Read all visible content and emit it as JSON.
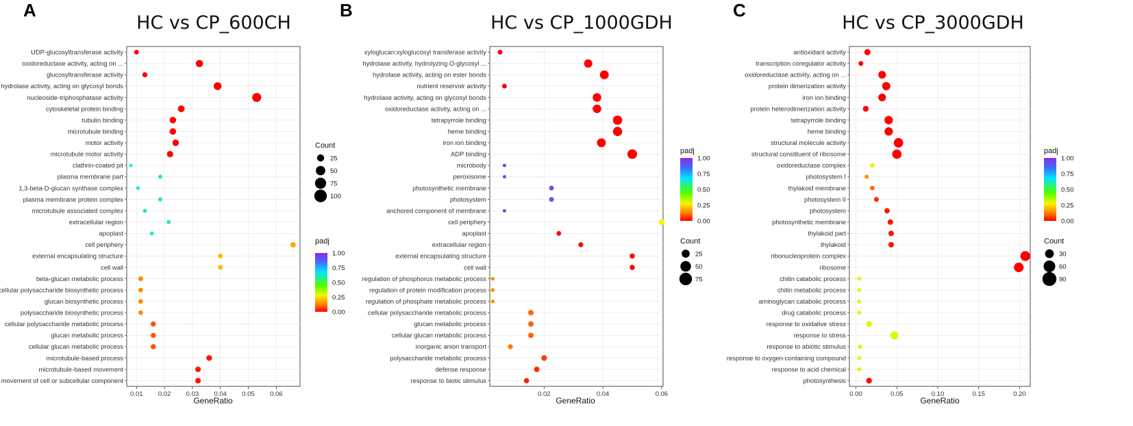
{
  "chart_data": [
    {
      "type": "scatter",
      "panel": "A",
      "title": "HC vs CP_600CH",
      "xlabel": "GeneRatio",
      "xlim": [
        0.0065,
        0.0685
      ],
      "xticks": [
        0.01,
        0.02,
        0.03,
        0.04,
        0.05,
        0.06
      ],
      "xtick_labels": [
        "0.01",
        "0.02",
        "0.03",
        "0.04",
        "0.05",
        "0.06"
      ],
      "size_legend": {
        "title": "Count",
        "values": [
          25,
          50,
          75,
          100
        ],
        "labels": [
          "25",
          "50",
          "75",
          "100"
        ],
        "max": 100
      },
      "color_legend": {
        "title": "padj",
        "labels": [
          "1.00",
          "0.75",
          "0.50",
          "0.25",
          "0.00"
        ]
      },
      "terms": [
        {
          "label": "UDP-glucosyltransferase activity",
          "x": 0.01,
          "count": 8,
          "padj": 0.0
        },
        {
          "label": "oxidoreductase activity, acting on ...",
          "x": 0.0325,
          "count": 26,
          "padj": 0.0
        },
        {
          "label": "glucosyltransferase activity",
          "x": 0.013,
          "count": 10,
          "padj": 0.0
        },
        {
          "label": "hydrolase activity, acting on glycosyl bonds",
          "x": 0.039,
          "count": 32,
          "padj": 0.0
        },
        {
          "label": "nucleoside-triphosphatase activity",
          "x": 0.053,
          "count": 45,
          "padj": 0.0
        },
        {
          "label": "cytoskeletal protein binding",
          "x": 0.026,
          "count": 22,
          "padj": 0.0
        },
        {
          "label": "tubulin binding",
          "x": 0.023,
          "count": 20,
          "padj": 0.0
        },
        {
          "label": "microtubule binding",
          "x": 0.023,
          "count": 20,
          "padj": 0.0
        },
        {
          "label": "motor activity",
          "x": 0.024,
          "count": 20,
          "padj": 0.0
        },
        {
          "label": "microtubule motor activity",
          "x": 0.022,
          "count": 18,
          "padj": 0.0
        },
        {
          "label": "clathrin-coated pit",
          "x": 0.008,
          "count": 2,
          "padj": 0.62
        },
        {
          "label": "plasma membrane part",
          "x": 0.0185,
          "count": 5,
          "padj": 0.6
        },
        {
          "label": "1,3-beta-D-glucan synthase complex",
          "x": 0.0105,
          "count": 3,
          "padj": 0.65
        },
        {
          "label": "plasma membrane protein complex",
          "x": 0.0185,
          "count": 5,
          "padj": 0.6
        },
        {
          "label": "microtubule associated complex",
          "x": 0.013,
          "count": 4,
          "padj": 0.62
        },
        {
          "label": "extracellular region",
          "x": 0.0215,
          "count": 5,
          "padj": 0.58
        },
        {
          "label": "apoplast",
          "x": 0.0155,
          "count": 4,
          "padj": 0.6
        },
        {
          "label": "cell periphery",
          "x": 0.066,
          "count": 12,
          "padj": 0.18
        },
        {
          "label": "external encapsulating structure",
          "x": 0.04,
          "count": 8,
          "padj": 0.2
        },
        {
          "label": "cell wall",
          "x": 0.04,
          "count": 8,
          "padj": 0.2
        },
        {
          "label": "beta-glucan metabolic process",
          "x": 0.0115,
          "count": 8,
          "padj": 0.14
        },
        {
          "label": "cellular polysaccharide biosynthetic process",
          "x": 0.0115,
          "count": 8,
          "padj": 0.14
        },
        {
          "label": "glucan biosynthetic process",
          "x": 0.0115,
          "count": 8,
          "padj": 0.14
        },
        {
          "label": "polysaccharide biosynthetic process",
          "x": 0.0115,
          "count": 8,
          "padj": 0.14
        },
        {
          "label": "cellular polysaccharide metabolic process",
          "x": 0.016,
          "count": 10,
          "padj": 0.08
        },
        {
          "label": "glucan metabolic process",
          "x": 0.016,
          "count": 10,
          "padj": 0.08
        },
        {
          "label": "cellular glucan metabolic process",
          "x": 0.016,
          "count": 10,
          "padj": 0.08
        },
        {
          "label": "microtubule-based process",
          "x": 0.036,
          "count": 14,
          "padj": 0.02
        },
        {
          "label": "microtubule-based movement",
          "x": 0.032,
          "count": 13,
          "padj": 0.02
        },
        {
          "label": "movement of cell or subcellular component",
          "x": 0.032,
          "count": 13,
          "padj": 0.02
        }
      ]
    },
    {
      "type": "scatter",
      "panel": "B",
      "title": "HC vs CP_1000GDH",
      "xlabel": "GeneRatio",
      "xlim": [
        0.0015,
        0.0605
      ],
      "xticks": [
        0.02,
        0.04,
        0.06
      ],
      "xtick_labels": [
        "0.02",
        "0.04",
        "0.06"
      ],
      "size_legend": {
        "title": "Count",
        "values": [
          25,
          50,
          75
        ],
        "labels": [
          "25",
          "50",
          "75"
        ],
        "max": 75
      },
      "color_legend": {
        "title": "padj",
        "labels": [
          "1.00",
          "0.75",
          "0.50",
          "0.25",
          "0.00"
        ]
      },
      "terms": [
        {
          "label": "xyloglucan:xyloglucosyl transferase activity",
          "x": 0.005,
          "count": 6,
          "padj": 0.0
        },
        {
          "label": "hydrolase activity, hydrolyzing O-glycosyl ...",
          "x": 0.035,
          "count": 28,
          "padj": 0.0
        },
        {
          "label": "hydrolase activity, acting on ester bonds",
          "x": 0.0405,
          "count": 32,
          "padj": 0.0
        },
        {
          "label": "nutrient reservoir activity",
          "x": 0.0065,
          "count": 6,
          "padj": 0.0
        },
        {
          "label": "hydrolase activity, acting on glycosyl bonds",
          "x": 0.038,
          "count": 30,
          "padj": 0.0
        },
        {
          "label": "oxidoreductase activity, acting on ...",
          "x": 0.038,
          "count": 30,
          "padj": 0.0
        },
        {
          "label": "tetrapyrrole binding",
          "x": 0.045,
          "count": 36,
          "padj": 0.0
        },
        {
          "label": "heme binding",
          "x": 0.045,
          "count": 36,
          "padj": 0.0
        },
        {
          "label": "iron ion binding",
          "x": 0.0395,
          "count": 32,
          "padj": 0.0
        },
        {
          "label": "ADP binding",
          "x": 0.05,
          "count": 40,
          "padj": 0.0
        },
        {
          "label": "microbody",
          "x": 0.0065,
          "count": 2,
          "padj": 0.92
        },
        {
          "label": "peroxisome",
          "x": 0.0065,
          "count": 2,
          "padj": 0.92
        },
        {
          "label": "photosynthetic membrane",
          "x": 0.0225,
          "count": 6,
          "padj": 0.9
        },
        {
          "label": "photosystem",
          "x": 0.0225,
          "count": 6,
          "padj": 0.9
        },
        {
          "label": "anchored component of membrane",
          "x": 0.0065,
          "count": 2,
          "padj": 0.92
        },
        {
          "label": "cell periphery",
          "x": 0.06,
          "count": 12,
          "padj": 0.28
        },
        {
          "label": "apoplast",
          "x": 0.025,
          "count": 6,
          "padj": 0.01
        },
        {
          "label": "extracellular region",
          "x": 0.0325,
          "count": 7,
          "padj": 0.01
        },
        {
          "label": "external encapsulating structure",
          "x": 0.05,
          "count": 8,
          "padj": 0.01
        },
        {
          "label": "cell wall",
          "x": 0.05,
          "count": 8,
          "padj": 0.01
        },
        {
          "label": "regulation of phosphorus metabolic process",
          "x": 0.0025,
          "count": 3,
          "padj": 0.15
        },
        {
          "label": "regulation of protein modification process",
          "x": 0.0025,
          "count": 3,
          "padj": 0.15
        },
        {
          "label": "regulation of phosphate metabolic process",
          "x": 0.0025,
          "count": 3,
          "padj": 0.15
        },
        {
          "label": "cellular polysaccharide metabolic process",
          "x": 0.0155,
          "count": 9,
          "padj": 0.1
        },
        {
          "label": "glucan metabolic process",
          "x": 0.0155,
          "count": 9,
          "padj": 0.1
        },
        {
          "label": "cellular glucan metabolic process",
          "x": 0.0155,
          "count": 9,
          "padj": 0.1
        },
        {
          "label": "inorganic anion transport",
          "x": 0.0085,
          "count": 7,
          "padj": 0.12
        },
        {
          "label": "polysaccharide metabolic process",
          "x": 0.02,
          "count": 10,
          "padj": 0.06
        },
        {
          "label": "defense response",
          "x": 0.0175,
          "count": 9,
          "padj": 0.04
        },
        {
          "label": "response to biotic stimulus",
          "x": 0.014,
          "count": 8,
          "padj": 0.03
        }
      ]
    },
    {
      "type": "scatter",
      "panel": "C",
      "title": "HC vs CP_3000GDH",
      "xlabel": "GeneRatio",
      "xlim": [
        -0.008,
        0.213
      ],
      "xticks": [
        0.0,
        0.05,
        0.1,
        0.15,
        0.2
      ],
      "xtick_labels": [
        "0.00",
        "0.05",
        "0.10",
        "0.15",
        "0.20"
      ],
      "size_legend": {
        "title": "Count",
        "values": [
          30,
          60,
          90
        ],
        "labels": [
          "30",
          "60",
          "90"
        ],
        "max": 90
      },
      "color_legend": {
        "title": "padj",
        "labels": [
          "1.00",
          "0.75",
          "0.50",
          "0.25",
          "0.00"
        ]
      },
      "terms": [
        {
          "label": "antioxidant activity",
          "x": 0.014,
          "count": 12,
          "padj": 0.0
        },
        {
          "label": "transcription coregulator activity",
          "x": 0.006,
          "count": 6,
          "padj": 0.0
        },
        {
          "label": "oxidoreductase activity, acting on ...",
          "x": 0.032,
          "count": 22,
          "padj": 0.0
        },
        {
          "label": "protein dimerization activity",
          "x": 0.037,
          "count": 26,
          "padj": 0.0
        },
        {
          "label": "iron ion binding",
          "x": 0.032,
          "count": 22,
          "padj": 0.0
        },
        {
          "label": "protein heterodimerization activity",
          "x": 0.012,
          "count": 10,
          "padj": 0.0
        },
        {
          "label": "tetrapyrrole binding",
          "x": 0.04,
          "count": 27,
          "padj": 0.0
        },
        {
          "label": "heme binding",
          "x": 0.04,
          "count": 27,
          "padj": 0.0
        },
        {
          "label": "structural molecule activity",
          "x": 0.052,
          "count": 36,
          "padj": 0.0
        },
        {
          "label": "structural constituent of ribosome",
          "x": 0.05,
          "count": 35,
          "padj": 0.0
        },
        {
          "label": "oxidoreductase complex",
          "x": 0.02,
          "count": 5,
          "padj": 0.3
        },
        {
          "label": "photosystem I",
          "x": 0.013,
          "count": 4,
          "padj": 0.15
        },
        {
          "label": "thylakoid membrane",
          "x": 0.02,
          "count": 5,
          "padj": 0.1
        },
        {
          "label": "photosystem II",
          "x": 0.025,
          "count": 6,
          "padj": 0.04
        },
        {
          "label": "photosystem",
          "x": 0.038,
          "count": 8,
          "padj": 0.02
        },
        {
          "label": "photosynthetic membrane",
          "x": 0.042,
          "count": 9,
          "padj": 0.02
        },
        {
          "label": "thylakoid part",
          "x": 0.043,
          "count": 9,
          "padj": 0.02
        },
        {
          "label": "thylakoid",
          "x": 0.043,
          "count": 9,
          "padj": 0.02
        },
        {
          "label": "ribonucleoprotein complex",
          "x": 0.207,
          "count": 40,
          "padj": 0.0
        },
        {
          "label": "ribosome",
          "x": 0.199,
          "count": 38,
          "padj": 0.0
        },
        {
          "label": "chitin catabolic process",
          "x": 0.004,
          "count": 3,
          "padj": 0.3
        },
        {
          "label": "chitin metabolic process",
          "x": 0.004,
          "count": 3,
          "padj": 0.3
        },
        {
          "label": "aminoglycan catabolic process",
          "x": 0.004,
          "count": 3,
          "padj": 0.3
        },
        {
          "label": "drug catabolic process",
          "x": 0.004,
          "count": 3,
          "padj": 0.3
        },
        {
          "label": "response to oxidative stress",
          "x": 0.016,
          "count": 10,
          "padj": 0.3
        },
        {
          "label": "response to stress",
          "x": 0.047,
          "count": 24,
          "padj": 0.3
        },
        {
          "label": "response to abiotic stimulus",
          "x": 0.005,
          "count": 4,
          "padj": 0.3
        },
        {
          "label": "response to oxygen-containing compound",
          "x": 0.004,
          "count": 3,
          "padj": 0.3
        },
        {
          "label": "response to acid chemical",
          "x": 0.004,
          "count": 3,
          "padj": 0.3
        },
        {
          "label": "photosynthesis",
          "x": 0.016,
          "count": 10,
          "padj": 0.01
        }
      ]
    }
  ]
}
